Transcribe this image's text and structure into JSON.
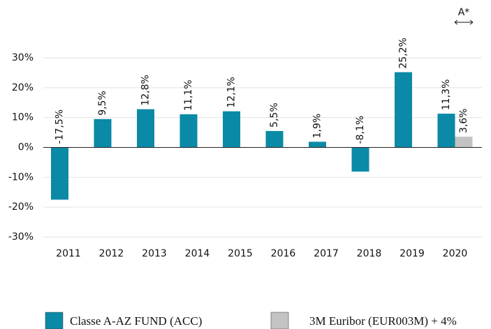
{
  "chart_data": {
    "type": "bar",
    "annotation": "A*",
    "categories": [
      "2011",
      "2012",
      "2013",
      "2014",
      "2015",
      "2016",
      "2017",
      "2018",
      "2019",
      "2020"
    ],
    "series": [
      {
        "name": "Classe A-AZ FUND (ACC)",
        "color": "#0a8aa6",
        "values": [
          -17.5,
          9.5,
          12.8,
          11.1,
          12.1,
          5.5,
          1.9,
          -8.1,
          25.2,
          11.3
        ],
        "value_labels": [
          "-17,5%",
          "9,5%",
          "12,8%",
          "11,1%",
          "12,1%",
          "5,5%",
          "1,9%",
          "-8,1%",
          "25,2%",
          "11,3%"
        ]
      },
      {
        "name": "3M Euribor (EUR003M) + 4%",
        "color": "#c3c3c3",
        "values": [
          null,
          null,
          null,
          null,
          null,
          null,
          null,
          null,
          null,
          3.6
        ],
        "value_labels": [
          null,
          null,
          null,
          null,
          null,
          null,
          null,
          null,
          null,
          "3,6%"
        ]
      }
    ],
    "ylim": [
      -30,
      30
    ],
    "yticks": [
      {
        "value": -30,
        "label": "-30%"
      },
      {
        "value": -20,
        "label": "-20%"
      },
      {
        "value": -10,
        "label": "-10%"
      },
      {
        "value": 0,
        "label": "0%"
      },
      {
        "value": 10,
        "label": "10%"
      },
      {
        "value": 20,
        "label": "20%"
      },
      {
        "value": 30,
        "label": "30%"
      }
    ],
    "grid": true
  }
}
